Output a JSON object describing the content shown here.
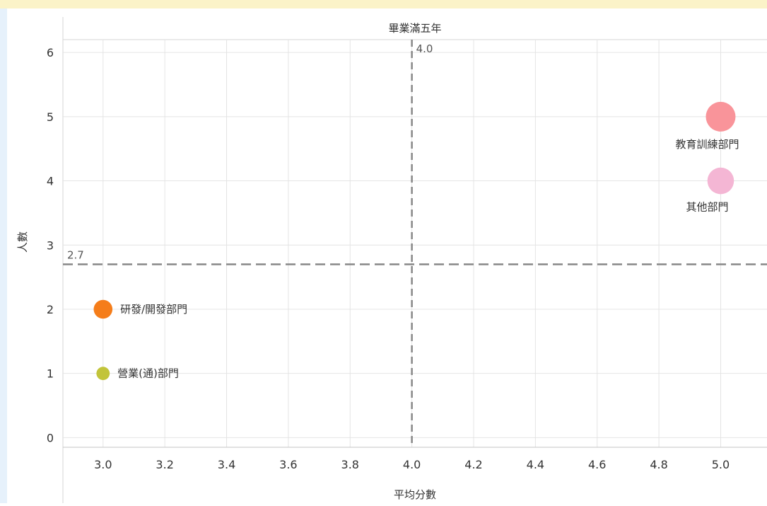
{
  "chart_data": {
    "type": "scatter",
    "title": "畢業滿五年",
    "xlabel": "平均分數",
    "ylabel": "人數",
    "xlim": [
      2.87,
      5.15
    ],
    "ylim": [
      -0.15,
      6.2
    ],
    "xticks": [
      "3.0",
      "3.2",
      "3.4",
      "3.6",
      "3.8",
      "4.0",
      "4.2",
      "4.4",
      "4.6",
      "4.8",
      "5.0"
    ],
    "yticks": [
      "0",
      "1",
      "2",
      "3",
      "4",
      "5",
      "6"
    ],
    "grid": true,
    "reference_lines": {
      "x": {
        "value": 4.0,
        "label": "4.0"
      },
      "y": {
        "value": 2.7,
        "label": "2.7"
      }
    },
    "points": [
      {
        "label": "教育訓練部門",
        "x": 5.0,
        "y": 5,
        "size": 5,
        "color": "#f9949a"
      },
      {
        "label": "其他部門",
        "x": 5.0,
        "y": 4,
        "size": 4,
        "color": "#f4b6d4"
      },
      {
        "label": "研發/開發部門",
        "x": 3.0,
        "y": 2,
        "size": 2,
        "color": "#f57d1a"
      },
      {
        "label": "營業(通)部門",
        "x": 3.0,
        "y": 1,
        "size": 1,
        "color": "#c2c43a"
      }
    ]
  }
}
